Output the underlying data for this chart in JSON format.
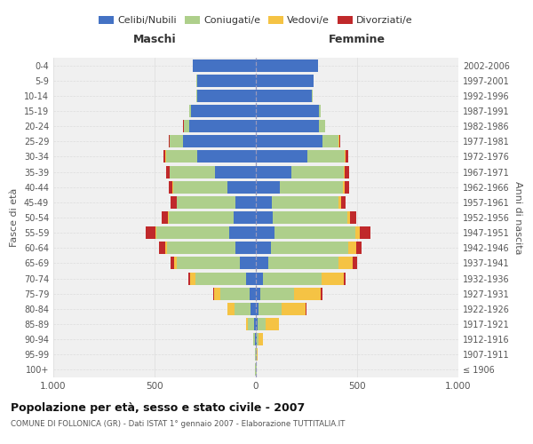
{
  "age_groups": [
    "100+",
    "95-99",
    "90-94",
    "85-89",
    "80-84",
    "75-79",
    "70-74",
    "65-69",
    "60-64",
    "55-59",
    "50-54",
    "45-49",
    "40-44",
    "35-39",
    "30-34",
    "25-29",
    "20-24",
    "15-19",
    "10-14",
    "5-9",
    "0-4"
  ],
  "birth_years": [
    "≤ 1906",
    "1907-1911",
    "1912-1916",
    "1917-1921",
    "1922-1926",
    "1927-1931",
    "1932-1936",
    "1937-1941",
    "1942-1946",
    "1947-1951",
    "1952-1956",
    "1957-1961",
    "1962-1966",
    "1967-1971",
    "1972-1976",
    "1977-1981",
    "1982-1986",
    "1987-1991",
    "1992-1996",
    "1997-2001",
    "2002-2006"
  ],
  "maschi": {
    "celibi": [
      2,
      2,
      4,
      10,
      25,
      30,
      50,
      80,
      100,
      130,
      110,
      100,
      140,
      200,
      290,
      360,
      330,
      320,
      290,
      290,
      310
    ],
    "coniugati": [
      1,
      2,
      8,
      30,
      80,
      145,
      250,
      310,
      340,
      360,
      320,
      290,
      270,
      225,
      155,
      65,
      25,
      8,
      5,
      2,
      2
    ],
    "vedovi": [
      0,
      0,
      2,
      10,
      35,
      30,
      25,
      12,
      8,
      5,
      3,
      2,
      2,
      2,
      2,
      2,
      2,
      0,
      0,
      0,
      0
    ],
    "divorziati": [
      0,
      0,
      0,
      0,
      2,
      5,
      10,
      20,
      30,
      50,
      30,
      28,
      20,
      15,
      10,
      5,
      2,
      0,
      0,
      0,
      0
    ]
  },
  "femmine": {
    "nubili": [
      2,
      2,
      5,
      8,
      15,
      20,
      35,
      60,
      75,
      90,
      85,
      80,
      120,
      175,
      255,
      330,
      310,
      310,
      275,
      285,
      305
    ],
    "coniugate": [
      1,
      2,
      10,
      40,
      110,
      170,
      290,
      350,
      380,
      400,
      365,
      330,
      310,
      260,
      185,
      80,
      30,
      10,
      5,
      2,
      2
    ],
    "vedove": [
      0,
      3,
      20,
      65,
      120,
      130,
      110,
      70,
      40,
      25,
      15,
      10,
      8,
      5,
      3,
      2,
      1,
      0,
      0,
      0,
      0
    ],
    "divorziate": [
      0,
      0,
      0,
      2,
      5,
      8,
      10,
      20,
      25,
      50,
      30,
      25,
      22,
      20,
      12,
      5,
      2,
      0,
      0,
      0,
      0
    ]
  },
  "colors": {
    "celibi": "#4472C4",
    "coniugati": "#AECF8B",
    "vedovi": "#F5C344",
    "divorziati": "#C0292B"
  },
  "xlim": 1000,
  "title": "Popolazione per età, sesso e stato civile - 2007",
  "subtitle": "COMUNE DI FOLLONICA (GR) - Dati ISTAT 1° gennaio 2007 - Elaborazione TUTTITALIA.IT",
  "ylabel_left": "Fasce di età",
  "ylabel_right": "Anni di nascita",
  "xlabel_left": "Maschi",
  "xlabel_right": "Femmine",
  "bg_color": "#FFFFFF",
  "plot_bg": "#F0F0F0",
  "grid_color": "#DDDDDD"
}
